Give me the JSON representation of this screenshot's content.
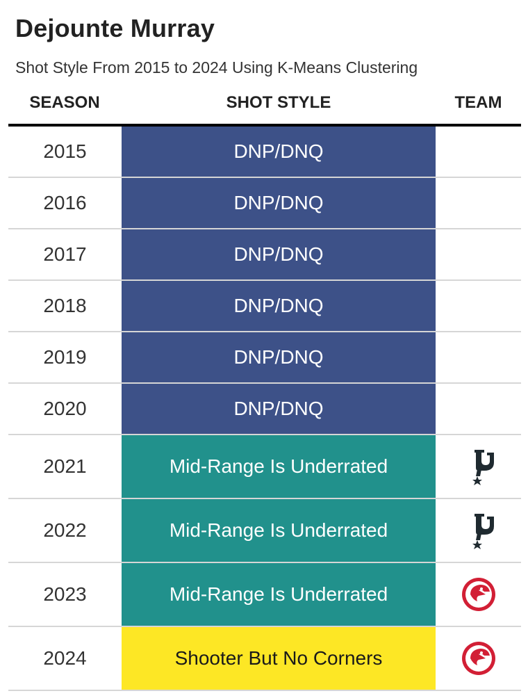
{
  "title": "Dejounte Murray",
  "subtitle": "Shot Style From 2015 to 2024 Using K-Means Clustering",
  "headers": {
    "season": "SEASON",
    "style": "SHOT STYLE",
    "team": "TEAM"
  },
  "colors": {
    "dnp": "#3d5188",
    "midrange": "#21918c",
    "shooter": "#fde725",
    "text_light": "#ffffff",
    "text_dark": "#1a1a1a",
    "spurs": "#1f2a30",
    "hawks": "#d21f35"
  },
  "rows": [
    {
      "season": "2015",
      "style": "DNP/DNQ",
      "style_key": "dnp",
      "team": ""
    },
    {
      "season": "2016",
      "style": "DNP/DNQ",
      "style_key": "dnp",
      "team": ""
    },
    {
      "season": "2017",
      "style": "DNP/DNQ",
      "style_key": "dnp",
      "team": ""
    },
    {
      "season": "2018",
      "style": "DNP/DNQ",
      "style_key": "dnp",
      "team": ""
    },
    {
      "season": "2019",
      "style": "DNP/DNQ",
      "style_key": "dnp",
      "team": ""
    },
    {
      "season": "2020",
      "style": "DNP/DNQ",
      "style_key": "dnp",
      "team": ""
    },
    {
      "season": "2021",
      "style": "Mid-Range Is Underrated",
      "style_key": "midrange",
      "team": "spurs-logo-icon"
    },
    {
      "season": "2022",
      "style": "Mid-Range Is Underrated",
      "style_key": "midrange",
      "team": "spurs-logo-icon"
    },
    {
      "season": "2023",
      "style": "Mid-Range Is Underrated",
      "style_key": "midrange",
      "team": "hawks-logo-icon"
    },
    {
      "season": "2024",
      "style": "Shooter But No Corners",
      "style_key": "shooter",
      "team": "hawks-logo-icon"
    }
  ]
}
